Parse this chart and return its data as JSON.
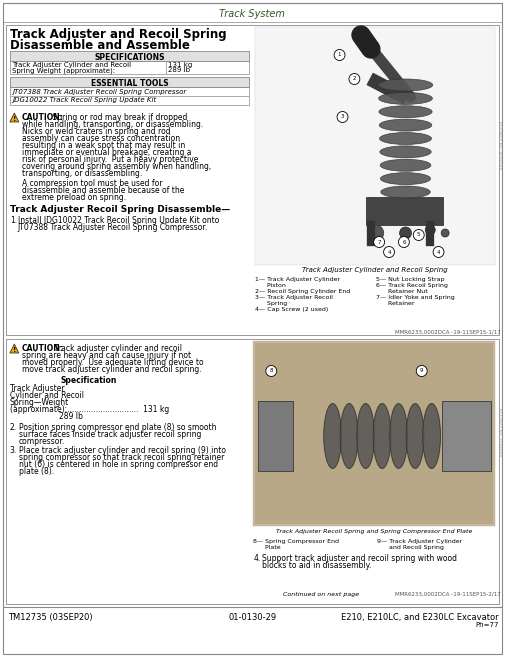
{
  "page_title": "Track System",
  "footer_left": "TM12735 (03SEP20)",
  "footer_center": "01-0130-29",
  "footer_right": "E210, E210LC, and E230LC Excavator",
  "footer_page": "Ph=77",
  "title_color": "#2c5c1e",
  "page_title_color": "#2c5c1e",
  "bg_color": "#ffffff",
  "sec1_title1": "Track Adjuster and Recoil Spring",
  "sec1_title2": "Disassemble and Assemble",
  "spec_header": "SPECIFICATIONS",
  "spec_label1": "Track Adjuster Cylinder and Recoil",
  "spec_label2": "Spring Weight (approximate):",
  "spec_val1": "131 kg",
  "spec_val2": "289 lb",
  "tools_header": "ESSENTIAL TOOLS",
  "tool1": "JT07388 Track Adjuster Recoil Spring Compressor",
  "tool2": "JDG10022 Track Recoil Spring Update Kit",
  "caution1_bold": "CAUTION:",
  "caution1_text": " Spring or rod may break if dropped\nwhile handling, transporting, or disassembling.\nNicks or weld craters in spring and rod\nassembly can cause stress concentration\nresulting in a weak spot that may result in\nimmediate or eventual breakage, creating a\nrisk of personal injury.  Put a heavy protective\ncovering around spring assembly when handling,\ntransporting, or disassembling.",
  "caution1_text2": "A compression tool must be used for\ndisassemble and assemble because of the\nextreme preload on spring.",
  "subsec1": "Track Adjuster Recoil Spring Disassemble—",
  "step1_num": "1.",
  "step1_text": "Install JDG10022 Track Recoil Spring Update Kit onto\nJT07388 Track Adjuster Recoil Spring Compressor.",
  "fig1_caption": "Track Adjuster Cylinder and Recoil Spring",
  "ref1": "MMR6233,0002DCA -19-11SEP15-1/17",
  "leg1_1": "1— Track Adjuster Cylinder     5— Nut Locking Strap",
  "leg1_2": "      Piston                              6— Track Recoil Spring",
  "leg1_3": "2— Recoil Spring Cylinder End       Retainer Nut",
  "leg1_4": "3— Track Adjuster Recoil       7— Idler Yoke and Spring",
  "leg1_5": "      Spring                              Retainer",
  "leg1_6": "4— Cap Screw (2 used)",
  "caution2_text": "CAUTION: Track adjuster cylinder and recoil\nspring are heavy and can cause injury if not\nmoved properly.  Use adequate lifting device to\nmove track adjuster cylinder and recoil spring.",
  "spec2_header": "Specification",
  "spec2_label1": "Track Adjuster",
  "spec2_label2": "Cylinder and Recoil",
  "spec2_label3": "Spring—Weight",
  "spec2_label4": "(approximate):..............................  131 kg",
  "spec2_val": "289 lb",
  "step2_num": "2.",
  "step2_text": "Position spring compressor end plate (8) so smooth\nsurface faces inside track adjuster recoil spring\ncompressor.",
  "step3_num": "3.",
  "step3_text": "Place track adjuster cylinder and recoil spring (9) into\nspring compressor so that track recoil spring retainer\nnut (6) is centered in hole in spring compressor end\nplate (8).",
  "step4_num": "4.",
  "step4_text": "Support track adjuster and recoil spring with wood\nblocks to aid in disassembly.",
  "fig2_caption": "Track Adjuster Recoil Spring and Spring Compressor End Plate",
  "leg2_1": "8— Spring Compressor End     9— Track Adjuster Cylinder",
  "leg2_2": "      Plate                                  and Recoil Spring",
  "continued": "Continued on next page",
  "ref2": "MMR6233,0002DCA -19-11SEP15-2/17",
  "sidebar1": "T1618008 -UN-22NOV14",
  "sidebar2": "T1618009 -UN-22NOV14"
}
